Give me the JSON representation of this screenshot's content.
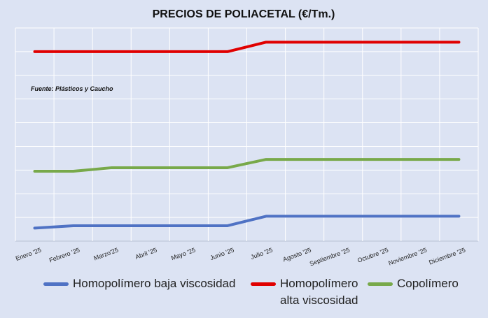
{
  "chart_data": {
    "type": "line",
    "title": "PRECIOS DE POLIACETAL (€/Tm.)",
    "annotation": "Fuente: Plásticos y Caucho",
    "categories": [
      "Enero '25",
      "Febrero '25",
      "Marzo'25",
      "Abril '25",
      "Mayo '25",
      "Junio '25",
      "Julio '25",
      "Agosto '25",
      "Septiembre '25",
      "Octubre '25",
      "Noviembre '25",
      "Diciembre '25"
    ],
    "ylim": [
      0,
      9
    ],
    "grid": true,
    "legend_position": "bottom",
    "series": [
      {
        "name": "Homopolímero baja viscosidad",
        "legend_lines": [
          "Homopolímero baja viscosidad"
        ],
        "color": "#4f72c4",
        "values": [
          0.55,
          0.65,
          0.65,
          0.65,
          0.65,
          0.65,
          1.05,
          1.05,
          1.05,
          1.05,
          1.05,
          1.05
        ]
      },
      {
        "name": "Homopolímero alta viscosidad",
        "legend_lines": [
          "Homopolímero",
          "alta viscosidad"
        ],
        "color": "#e00000",
        "values": [
          8.0,
          8.0,
          8.0,
          8.0,
          8.0,
          8.0,
          8.4,
          8.4,
          8.4,
          8.4,
          8.4,
          8.4
        ]
      },
      {
        "name": "Copolímero",
        "legend_lines": [
          "Copolímero"
        ],
        "color": "#78a94a",
        "values": [
          2.95,
          2.95,
          3.1,
          3.1,
          3.1,
          3.1,
          3.45,
          3.45,
          3.45,
          3.45,
          3.45,
          3.45
        ]
      }
    ]
  }
}
